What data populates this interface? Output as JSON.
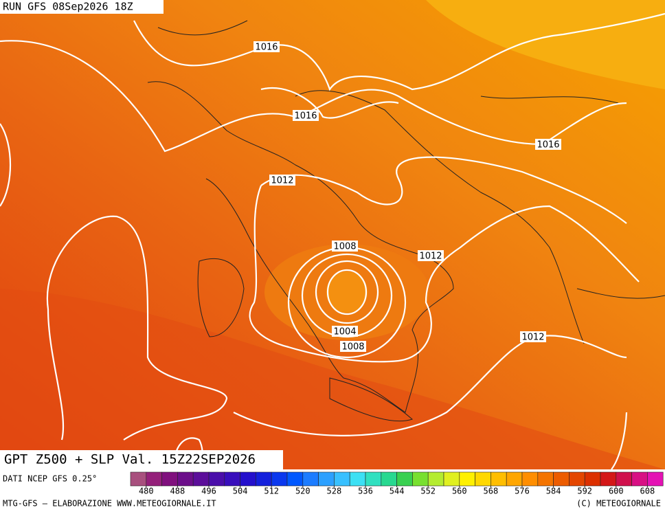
{
  "header": {
    "run": "RUN GFS 08Sep2026 18Z"
  },
  "map": {
    "title": "GPT Z500 + SLP Val. 15Z22SEP2026",
    "isobar_labels": [
      1016,
      1016,
      1016,
      1012,
      1008,
      1012,
      1004,
      1008,
      1012
    ]
  },
  "colorbar": {
    "start": 476,
    "step": 4,
    "colors": [
      "#a8507e",
      "#94207a",
      "#80107e",
      "#6c0e8a",
      "#5c0e9a",
      "#4a0eaa",
      "#380ebc",
      "#2410cc",
      "#1420dc",
      "#0a38ee",
      "#0058ff",
      "#1c7cff",
      "#2ca0ff",
      "#38c0ff",
      "#3ce0f4",
      "#30e0c0",
      "#28d890",
      "#38d050",
      "#78e030",
      "#b4ec30",
      "#e0f020",
      "#fff000",
      "#ffd800",
      "#ffbe00",
      "#ffa600",
      "#ff8e00",
      "#f47400",
      "#ec5c00",
      "#e44600",
      "#dc3000",
      "#d41818",
      "#d0104c",
      "#d81084",
      "#e412b4"
    ],
    "labels": [
      480,
      488,
      496,
      504,
      512,
      520,
      528,
      536,
      544,
      552,
      560,
      568,
      576,
      584,
      592,
      600,
      608
    ]
  },
  "footer": {
    "source": "DATI NCEP GFS 0.25°",
    "credit": "MTG-GFS — ELABORAZIONE WWW.METEOGIORNALE.IT",
    "copyright": "(C) METEOGIORNALE"
  }
}
